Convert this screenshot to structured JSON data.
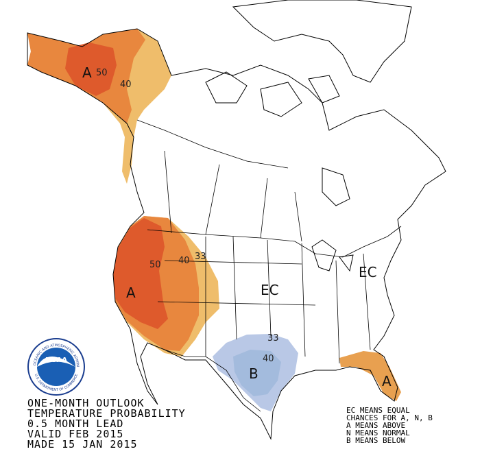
{
  "title_lines": [
    "ONE-MONTH OUTLOOK",
    "TEMPERATURE PROBABILITY",
    "0.5 MONTH LEAD",
    "VALID FEB 2015",
    "MADE 15 JAN 2015"
  ],
  "legend_lines": [
    "EC MEANS EQUAL",
    "CHANCES FOR A, N, B",
    "A MEANS ABOVE",
    "N MEANS NORMAL",
    "B MEANS BELOW"
  ],
  "map_labels": [
    "A",
    "50",
    "40",
    "50",
    "40",
    "33",
    "A",
    "EC",
    "EC",
    "33",
    "40",
    "B",
    "A"
  ],
  "logo": {
    "name": "NOAA",
    "ring_top": "NATIONAL OCEANIC AND ATMOSPHERIC ADMINISTRATION",
    "ring_bottom": "U.S. DEPARTMENT OF COMMERCE"
  }
}
